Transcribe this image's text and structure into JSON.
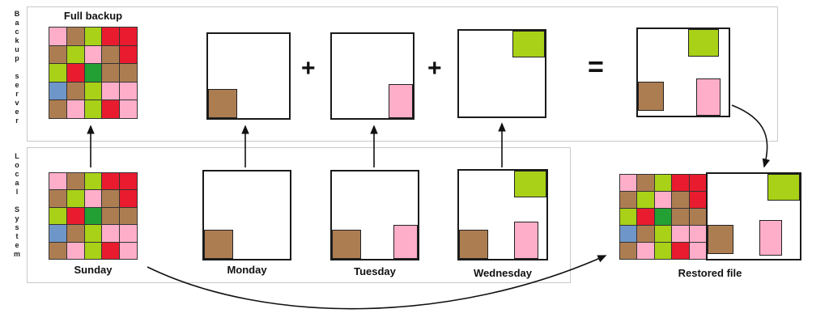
{
  "sections": {
    "backup_server": {
      "label": "Backup server"
    },
    "local_system": {
      "label": "Local System"
    }
  },
  "operators": {
    "plus_1": "+",
    "plus_2": "+",
    "equals": "="
  },
  "colors": {
    "brown": "#ad7d52",
    "pink": "#ffaec9",
    "lime": "#a8d117",
    "red": "#e81c2e",
    "green": "#22a033",
    "blue": "#6f96c8"
  },
  "full_backup": {
    "label": "Full backup",
    "grid": [
      [
        "#ffaec9",
        "#ad7d52",
        "#a8d117",
        "#e81c2e",
        "#e81c2e"
      ],
      [
        "#ad7d52",
        "#a8d117",
        "#ffaec9",
        "#ad7d52",
        "#e81c2e"
      ],
      [
        "#a8d117",
        "#e81c2e",
        "#22a033",
        "#ad7d52",
        "#ad7d52"
      ],
      [
        "#6f96c8",
        "#ad7d52",
        "#a8d117",
        "#ffaec9",
        "#ffaec9"
      ],
      [
        "#ad7d52",
        "#ffaec9",
        "#a8d117",
        "#e81c2e",
        "#ffaec9"
      ]
    ]
  },
  "backup_increments": {
    "monday": {
      "blocks": [
        {
          "pos": "bl",
          "color": "#ad7d52",
          "name": "brown-changed-block"
        }
      ]
    },
    "tuesday": {
      "blocks": [
        {
          "pos": "br",
          "color": "#ffaec9",
          "name": "pink-changed-block"
        }
      ]
    },
    "wednesday": {
      "blocks": [
        {
          "pos": "tr",
          "color": "#a8d117",
          "name": "lime-changed-block"
        }
      ]
    },
    "result": {
      "blocks": [
        {
          "pos": "tr-in",
          "color": "#a8d117",
          "name": "lime-changed-block"
        },
        {
          "pos": "bl-up",
          "color": "#ad7d52",
          "name": "brown-changed-block"
        },
        {
          "pos": "br-in",
          "color": "#ffaec9",
          "name": "pink-changed-block"
        }
      ]
    }
  },
  "local_files": {
    "sunday": {
      "label": "Sunday",
      "grid": [
        [
          "#ffaec9",
          "#ad7d52",
          "#a8d117",
          "#e81c2e",
          "#e81c2e"
        ],
        [
          "#ad7d52",
          "#a8d117",
          "#ffaec9",
          "#ad7d52",
          "#e81c2e"
        ],
        [
          "#a8d117",
          "#e81c2e",
          "#22a033",
          "#ad7d52",
          "#ad7d52"
        ],
        [
          "#6f96c8",
          "#ad7d52",
          "#a8d117",
          "#ffaec9",
          "#ffaec9"
        ],
        [
          "#ad7d52",
          "#ffaec9",
          "#a8d117",
          "#e81c2e",
          "#ffaec9"
        ]
      ]
    },
    "monday": {
      "label": "Monday",
      "blocks": [
        {
          "pos": "bl",
          "color": "#ad7d52",
          "name": "brown-changed-block"
        }
      ]
    },
    "tuesday": {
      "label": "Tuesday",
      "blocks": [
        {
          "pos": "bl",
          "color": "#ad7d52",
          "name": "brown-changed-block"
        },
        {
          "pos": "br",
          "color": "#ffaec9",
          "name": "pink-changed-block"
        }
      ]
    },
    "wednesday": {
      "label": "Wednesday",
      "blocks": [
        {
          "pos": "tr",
          "color": "#a8d117",
          "name": "lime-changed-block"
        },
        {
          "pos": "bl",
          "color": "#ad7d52",
          "name": "brown-changed-block"
        },
        {
          "pos": "br-in",
          "color": "#ffaec9",
          "name": "pink-changed-block"
        }
      ]
    },
    "restored": {
      "label": "Restored file",
      "grid": [
        [
          "#ffaec9",
          "#ad7d52",
          "#a8d117",
          "#e81c2e",
          "#e81c2e"
        ],
        [
          "#ad7d52",
          "#a8d117",
          "#ffaec9",
          "#ad7d52",
          "#e81c2e"
        ],
        [
          "#a8d117",
          "#e81c2e",
          "#22a033",
          "#ad7d52",
          "#ad7d52"
        ],
        [
          "#6f96c8",
          "#ad7d52",
          "#a8d117",
          "#ffaec9",
          "#ffaec9"
        ],
        [
          "#ad7d52",
          "#ffaec9",
          "#a8d117",
          "#e81c2e",
          "#ffaec9"
        ]
      ],
      "blocks": [
        {
          "pos": "tr",
          "color": "#a8d117",
          "name": "lime-changed-block"
        },
        {
          "pos": "rm",
          "color": "#ffaec9",
          "name": "pink-changed-block"
        },
        {
          "pos": "bl-up",
          "color": "#ad7d52",
          "name": "brown-changed-block"
        }
      ]
    }
  }
}
